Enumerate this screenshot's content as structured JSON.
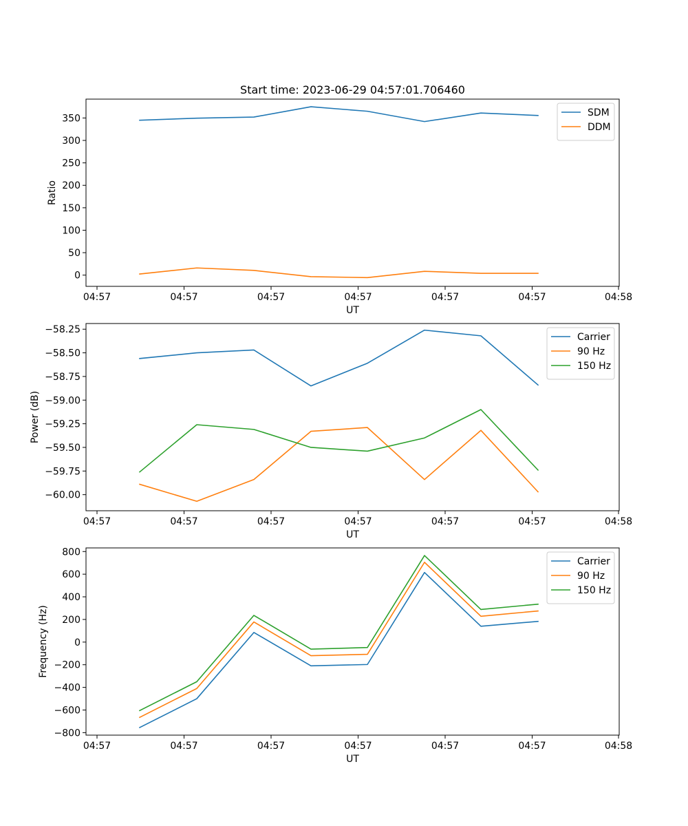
{
  "title": "Start time: 2023-06-29 04:57:01.706460",
  "chart_data": [
    {
      "type": "line",
      "xlabel": "UT",
      "ylabel": "Ratio",
      "x_tick_labels": [
        "04:57",
        "04:57",
        "04:57",
        "04:57",
        "04:57",
        "04:57",
        "04:57"
      ],
      "x_end_tick_label": "04:58",
      "ylim": [
        -25,
        392
      ],
      "yticks": [
        0,
        50,
        100,
        150,
        200,
        250,
        300,
        350
      ],
      "ytick_labels": [
        "0",
        "50",
        "100",
        "150",
        "200",
        "250",
        "300",
        "350"
      ],
      "grid": false,
      "legend_position": "upper right",
      "series": [
        {
          "name": "SDM",
          "color": "#1f77b4",
          "values": [
            345,
            349.5,
            352,
            375,
            365,
            342,
            361,
            355.5
          ]
        },
        {
          "name": "DDM",
          "color": "#ff7f0e",
          "values": [
            2.5,
            16,
            10.5,
            -3.5,
            -5.5,
            8.5,
            4,
            4
          ]
        }
      ]
    },
    {
      "type": "line",
      "xlabel": "UT",
      "ylabel": "Power (dB)",
      "x_tick_labels": [
        "04:57",
        "04:57",
        "04:57",
        "04:57",
        "04:57",
        "04:57",
        "04:57"
      ],
      "x_end_tick_label": "04:58",
      "ylim": [
        -60.17,
        -58.19
      ],
      "yticks": [
        -58.25,
        -58.5,
        -58.75,
        -59.0,
        -59.25,
        -59.5,
        -59.75,
        -60.0
      ],
      "ytick_labels": [
        "−58.25",
        "−58.50",
        "−58.75",
        "−59.00",
        "−59.25",
        "−59.50",
        "−59.75",
        "−60.00"
      ],
      "grid": false,
      "legend_position": "upper right",
      "series": [
        {
          "name": "Carrier",
          "color": "#1f77b4",
          "values": [
            -58.56,
            -58.5,
            -58.47,
            -58.85,
            -58.61,
            -58.26,
            -58.32,
            -58.84
          ]
        },
        {
          "name": "90 Hz",
          "color": "#ff7f0e",
          "values": [
            -59.89,
            -60.07,
            -59.84,
            -59.33,
            -59.29,
            -59.84,
            -59.32,
            -59.97
          ]
        },
        {
          "name": "150 Hz",
          "color": "#2ca02c",
          "values": [
            -59.76,
            -59.26,
            -59.31,
            -59.5,
            -59.54,
            -59.4,
            -59.1,
            -59.74
          ]
        }
      ]
    },
    {
      "type": "line",
      "xlabel": "UT",
      "ylabel": "Frequency (Hz)",
      "x_tick_labels": [
        "04:57",
        "04:57",
        "04:57",
        "04:57",
        "04:57",
        "04:57",
        "04:57"
      ],
      "x_end_tick_label": "04:58",
      "ylim": [
        -822,
        832
      ],
      "yticks": [
        -800,
        -600,
        -400,
        -200,
        0,
        200,
        400,
        600,
        800
      ],
      "ytick_labels": [
        "−800",
        "−600",
        "−400",
        "−200",
        "0",
        "200",
        "400",
        "600",
        "800"
      ],
      "grid": false,
      "legend_position": "upper right",
      "series": [
        {
          "name": "Carrier",
          "color": "#1f77b4",
          "values": [
            -755,
            -500,
            85,
            -210,
            -198,
            615,
            140,
            183
          ]
        },
        {
          "name": "90 Hz",
          "color": "#ff7f0e",
          "values": [
            -665,
            -410,
            178,
            -120,
            -108,
            705,
            228,
            275
          ]
        },
        {
          "name": "150 Hz",
          "color": "#2ca02c",
          "values": [
            -605,
            -350,
            236,
            -62,
            -48,
            765,
            288,
            335
          ]
        }
      ]
    }
  ]
}
